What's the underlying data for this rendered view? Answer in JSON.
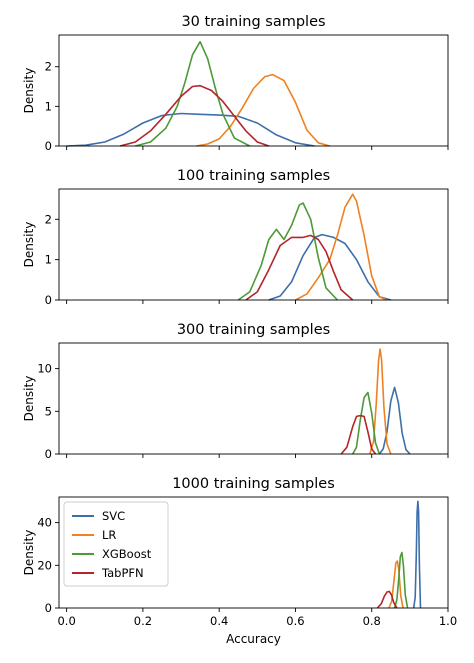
{
  "colors": {
    "SVC": "#3d6fa8",
    "LR": "#ee8122",
    "XGBoost": "#4c9a37",
    "TabPFN": "#b2262a"
  },
  "chart_data": [
    {
      "type": "line",
      "title": "30 training samples",
      "xlabel": "",
      "ylabel": "Density",
      "xlim": [
        -0.02,
        1.0
      ],
      "ylim": [
        0,
        2.8
      ],
      "yticks": [
        0,
        1,
        2
      ],
      "show_xtick_labels": false,
      "legend": false,
      "series": [
        {
          "name": "SVC",
          "x": [
            0.0,
            0.05,
            0.1,
            0.15,
            0.2,
            0.25,
            0.3,
            0.35,
            0.4,
            0.45,
            0.5,
            0.55,
            0.6,
            0.65
          ],
          "y": [
            0.0,
            0.02,
            0.1,
            0.3,
            0.58,
            0.77,
            0.82,
            0.8,
            0.78,
            0.75,
            0.58,
            0.28,
            0.08,
            0.0
          ]
        },
        {
          "name": "LR",
          "x": [
            0.34,
            0.37,
            0.4,
            0.43,
            0.46,
            0.49,
            0.52,
            0.54,
            0.57,
            0.6,
            0.63,
            0.66,
            0.69
          ],
          "y": [
            0.0,
            0.05,
            0.18,
            0.5,
            0.95,
            1.45,
            1.75,
            1.8,
            1.65,
            1.1,
            0.4,
            0.08,
            0.0
          ]
        },
        {
          "name": "XGBoost",
          "x": [
            0.18,
            0.22,
            0.26,
            0.29,
            0.31,
            0.33,
            0.35,
            0.37,
            0.39,
            0.41,
            0.44,
            0.48
          ],
          "y": [
            0.0,
            0.1,
            0.45,
            1.0,
            1.6,
            2.3,
            2.63,
            2.2,
            1.45,
            0.8,
            0.2,
            0.0
          ]
        },
        {
          "name": "TabPFN",
          "x": [
            0.14,
            0.18,
            0.22,
            0.26,
            0.3,
            0.33,
            0.35,
            0.38,
            0.41,
            0.44,
            0.47,
            0.5,
            0.53
          ],
          "y": [
            0.0,
            0.1,
            0.38,
            0.8,
            1.25,
            1.5,
            1.52,
            1.4,
            1.12,
            0.75,
            0.38,
            0.1,
            0.0
          ]
        }
      ]
    },
    {
      "type": "line",
      "title": "100 training samples",
      "xlabel": "",
      "ylabel": "Density",
      "xlim": [
        -0.02,
        1.0
      ],
      "ylim": [
        0,
        2.75
      ],
      "yticks": [
        0,
        1,
        2
      ],
      "show_xtick_labels": false,
      "legend": false,
      "series": [
        {
          "name": "SVC",
          "x": [
            0.53,
            0.56,
            0.59,
            0.62,
            0.65,
            0.67,
            0.7,
            0.73,
            0.76,
            0.79,
            0.82,
            0.85
          ],
          "y": [
            0.0,
            0.1,
            0.45,
            1.1,
            1.55,
            1.62,
            1.55,
            1.4,
            1.0,
            0.45,
            0.08,
            0.0
          ]
        },
        {
          "name": "LR",
          "x": [
            0.6,
            0.63,
            0.66,
            0.69,
            0.71,
            0.73,
            0.75,
            0.76,
            0.78,
            0.8,
            0.82,
            0.84
          ],
          "y": [
            0.0,
            0.15,
            0.55,
            1.0,
            1.6,
            2.3,
            2.62,
            2.45,
            1.6,
            0.6,
            0.08,
            0.0
          ]
        },
        {
          "name": "XGBoost",
          "x": [
            0.45,
            0.48,
            0.51,
            0.53,
            0.55,
            0.57,
            0.59,
            0.61,
            0.62,
            0.64,
            0.66,
            0.68,
            0.71
          ],
          "y": [
            0.0,
            0.2,
            0.85,
            1.5,
            1.75,
            1.5,
            1.85,
            2.35,
            2.4,
            2.0,
            1.05,
            0.3,
            0.0
          ]
        },
        {
          "name": "TabPFN",
          "x": [
            0.47,
            0.5,
            0.53,
            0.56,
            0.59,
            0.62,
            0.64,
            0.66,
            0.68,
            0.7,
            0.72,
            0.75
          ],
          "y": [
            0.0,
            0.2,
            0.75,
            1.35,
            1.55,
            1.55,
            1.6,
            1.5,
            1.2,
            0.7,
            0.25,
            0.0
          ]
        }
      ]
    },
    {
      "type": "line",
      "title": "300 training samples",
      "xlabel": "",
      "ylabel": "Density",
      "xlim": [
        -0.02,
        1.0
      ],
      "ylim": [
        0,
        13
      ],
      "yticks": [
        0,
        5,
        10
      ],
      "show_xtick_labels": false,
      "legend": false,
      "series": [
        {
          "name": "SVC",
          "x": [
            0.82,
            0.83,
            0.84,
            0.85,
            0.86,
            0.87,
            0.88,
            0.89,
            0.9
          ],
          "y": [
            0.0,
            0.6,
            2.6,
            6.2,
            7.8,
            6.0,
            2.4,
            0.5,
            0.0
          ]
        },
        {
          "name": "LR",
          "x": [
            0.795,
            0.805,
            0.812,
            0.818,
            0.822,
            0.826,
            0.832,
            0.84,
            0.85
          ],
          "y": [
            0.0,
            1.5,
            6.0,
            11.0,
            12.3,
            11.0,
            5.5,
            1.2,
            0.0
          ]
        },
        {
          "name": "XGBoost",
          "x": [
            0.75,
            0.76,
            0.77,
            0.78,
            0.79,
            0.8,
            0.81,
            0.82
          ],
          "y": [
            0.0,
            0.8,
            4.0,
            6.6,
            7.2,
            4.8,
            1.3,
            0.0
          ]
        },
        {
          "name": "TabPFN",
          "x": [
            0.72,
            0.735,
            0.75,
            0.76,
            0.77,
            0.78,
            0.79,
            0.8,
            0.81
          ],
          "y": [
            0.0,
            0.8,
            3.2,
            4.4,
            4.5,
            4.4,
            2.6,
            0.6,
            0.0
          ]
        }
      ]
    },
    {
      "type": "line",
      "title": "1000 training samples",
      "xlabel": "Accuracy",
      "ylabel": "Density",
      "xlim": [
        -0.02,
        1.0
      ],
      "ylim": [
        0,
        52
      ],
      "yticks": [
        0,
        20,
        40
      ],
      "xticks": [
        0.0,
        0.2,
        0.4,
        0.6,
        0.8,
        1.0
      ],
      "xtick_labels": [
        "0.0",
        "0.2",
        "0.4",
        "0.6",
        "0.8",
        "1.0"
      ],
      "show_xtick_labels": true,
      "legend": true,
      "legend_loc": "upper-left",
      "series": [
        {
          "name": "SVC",
          "x": [
            0.91,
            0.914,
            0.917,
            0.919,
            0.921,
            0.923,
            0.925,
            0.928
          ],
          "y": [
            0.0,
            5.0,
            25.0,
            45.0,
            50.0,
            45.0,
            20.0,
            0.0
          ]
        },
        {
          "name": "LR",
          "x": [
            0.845,
            0.852,
            0.858,
            0.863,
            0.867,
            0.871,
            0.876,
            0.882
          ],
          "y": [
            0.0,
            3.0,
            12.0,
            21.0,
            22.0,
            18.0,
            6.0,
            0.0
          ]
        },
        {
          "name": "XGBoost",
          "x": [
            0.86,
            0.866,
            0.871,
            0.875,
            0.879,
            0.883,
            0.888,
            0.894
          ],
          "y": [
            0.0,
            4.0,
            14.0,
            24.0,
            26.0,
            20.0,
            6.0,
            0.0
          ]
        },
        {
          "name": "TabPFN",
          "x": [
            0.815,
            0.825,
            0.833,
            0.84,
            0.846,
            0.852,
            0.858,
            0.866
          ],
          "y": [
            0.0,
            2.0,
            5.5,
            7.5,
            7.8,
            6.0,
            2.5,
            0.0
          ]
        }
      ]
    }
  ]
}
